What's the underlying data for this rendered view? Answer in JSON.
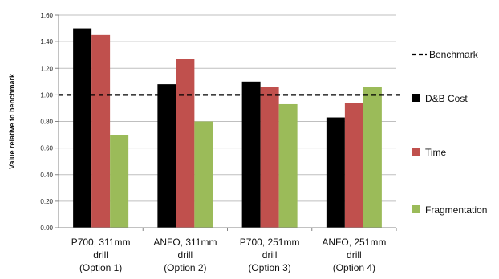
{
  "chart_data": {
    "type": "bar",
    "title": "",
    "xlabel": "",
    "ylabel": "Value relative to benchmark",
    "ylim": [
      0,
      1.6
    ],
    "yticks": [
      "0.00",
      "0.20",
      "0.40",
      "0.60",
      "0.80",
      "1.00",
      "1.20",
      "1.40",
      "1.60"
    ],
    "grid": true,
    "legend_position": "right",
    "categories": [
      [
        "P700, 311mm",
        "drill",
        "(Option 1)"
      ],
      [
        "ANFO, 311mm",
        "drill",
        "(Option 2)"
      ],
      [
        "P700, 251mm",
        "drill",
        "(Option 3)"
      ],
      [
        "ANFO, 251mm",
        "drill",
        "(Option 4)"
      ]
    ],
    "series": [
      {
        "name": "D&B Cost",
        "color": "#000000",
        "values": [
          1.5,
          1.08,
          1.1,
          0.83
        ]
      },
      {
        "name": "Time",
        "color": "#c0504d",
        "values": [
          1.45,
          1.27,
          1.06,
          0.94
        ]
      },
      {
        "name": "Fragmentation",
        "color": "#9bbb59",
        "values": [
          0.7,
          0.8,
          0.93,
          1.06
        ]
      }
    ],
    "benchmark": {
      "name": "Benchmark",
      "value": 1.0,
      "color": "#000000",
      "style": "dashed"
    }
  }
}
